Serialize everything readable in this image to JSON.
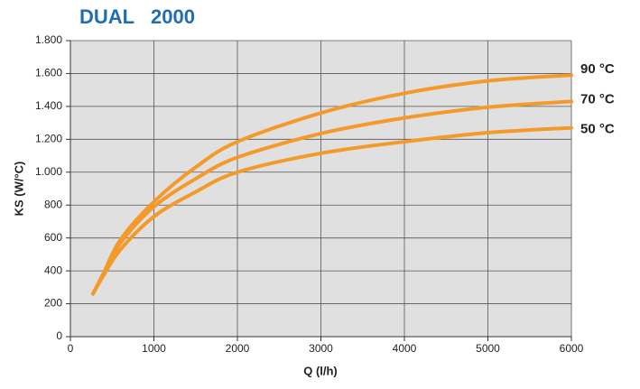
{
  "chart_data": {
    "type": "line",
    "title": "DUAL   2000",
    "x_label": "Q (l/h)",
    "y_label": "KS (W/°C)",
    "x": [
      270,
      400,
      600,
      1000,
      1500,
      2000,
      3000,
      4000,
      5000,
      6000
    ],
    "series": [
      {
        "name": "90 °C",
        "color": "#f39a2b",
        "values": [
          260,
          390,
          590,
          820,
          1030,
          1185,
          1360,
          1480,
          1555,
          1590
        ]
      },
      {
        "name": "70 °C",
        "color": "#f39a2b",
        "values": [
          260,
          385,
          570,
          790,
          960,
          1090,
          1235,
          1330,
          1395,
          1430
        ]
      },
      {
        "name": "50 °C",
        "color": "#f39a2b",
        "values": [
          260,
          375,
          530,
          730,
          880,
          1000,
          1115,
          1185,
          1240,
          1270
        ]
      }
    ],
    "xlim": [
      0,
      6000
    ],
    "xticks": [
      0,
      1000,
      2000,
      3000,
      4000,
      5000,
      6000
    ],
    "ylim": [
      0,
      1800
    ],
    "yticks": [
      0,
      200,
      400,
      600,
      800,
      {
        "value": 1000,
        "label": "1.000"
      },
      {
        "value": 1200,
        "label": "1.200"
      },
      {
        "value": 1400,
        "label": "1.400"
      },
      {
        "value": 1600,
        "label": "1.600"
      },
      {
        "value": 1800,
        "label": "1.800"
      }
    ],
    "grid": true
  }
}
